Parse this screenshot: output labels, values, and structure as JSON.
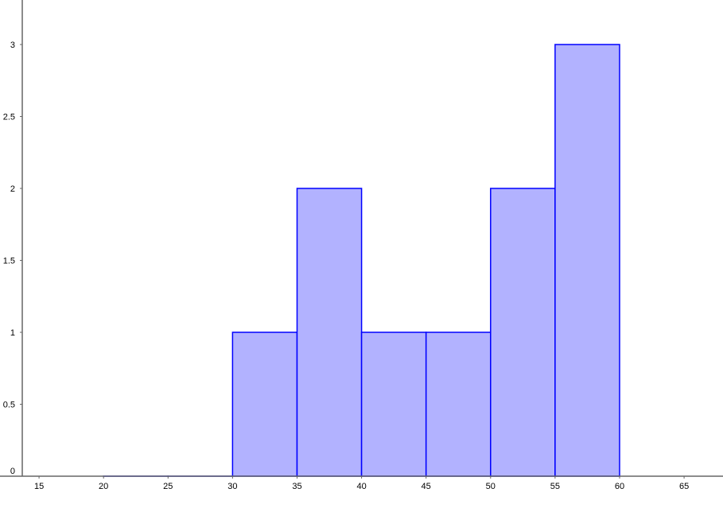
{
  "chart_data": {
    "type": "bar",
    "subtype": "histogram",
    "bins": [
      [
        20,
        25
      ],
      [
        25,
        30
      ],
      [
        30,
        35
      ],
      [
        35,
        40
      ],
      [
        40,
        45
      ],
      [
        45,
        50
      ],
      [
        50,
        55
      ],
      [
        55,
        60
      ]
    ],
    "values": [
      0,
      0,
      1,
      2,
      1,
      1,
      2,
      3
    ],
    "xlim": [
      13.7,
      67.5
    ],
    "ylim": [
      0,
      3.3
    ],
    "x_ticks": [
      "15",
      "20",
      "25",
      "30",
      "35",
      "40",
      "45",
      "50",
      "55",
      "60",
      "65"
    ],
    "y_ticks": [
      "0",
      "0.5",
      "1",
      "1.5",
      "2",
      "2.5",
      "3"
    ],
    "title": "",
    "xlabel": "",
    "ylabel": "",
    "grid": false,
    "colors": {
      "bar_fill": "#b2b2ff",
      "bar_stroke": "#0000ff",
      "axis": "#666666"
    }
  }
}
